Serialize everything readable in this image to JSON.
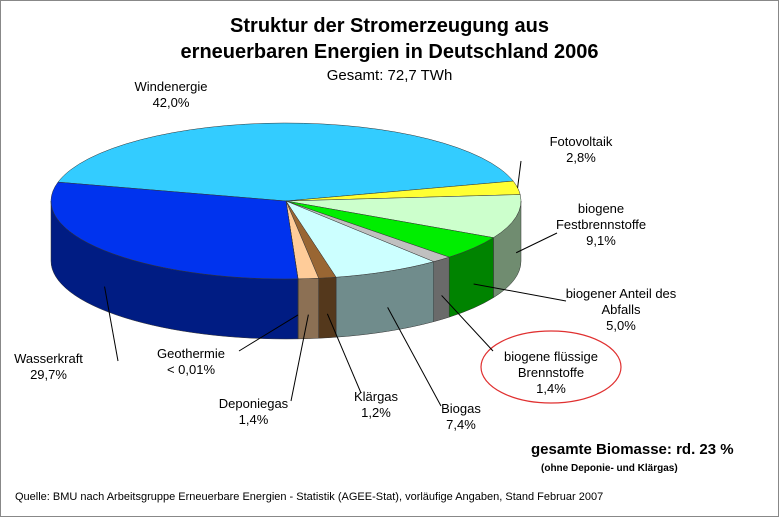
{
  "chart_data": {
    "type": "pie3d",
    "title": "Struktur der Stromerzeugung aus\nerneuerbaren Energien in Deutschland 2006",
    "subtitle": "Gesamt: 72,7 TWh",
    "categories": [
      "Windenergie",
      "Fotovoltaik",
      "biogene Festbrennstoffe",
      "biogener Anteil des Abfalls",
      "biogene flüssige Brennstoffe",
      "Biogas",
      "Klärgas",
      "Deponiegas",
      "Geothermie",
      "Wasserkraft"
    ],
    "values": [
      42.0,
      2.8,
      9.1,
      5.0,
      1.4,
      7.4,
      1.2,
      1.4,
      0.01,
      29.7
    ],
    "value_labels": [
      "42,0%",
      "2,8%",
      "9,1%",
      "5,0%",
      "1,4%",
      "7,4%",
      "1,2%",
      "1,4%",
      "< 0,01%",
      "29,7%"
    ],
    "colors": [
      "#33ccff",
      "#ffff33",
      "#ccffcc",
      "#00ee00",
      "#c0c0c0",
      "#ccffff",
      "#996633",
      "#ffcc99",
      "#000066",
      "#0033ee"
    ],
    "annotations": [
      "gesamte Biomasse: rd. 23 %",
      "(ohne Deponie- und Klärgas)"
    ],
    "source": "Quelle: BMU nach Arbeitsgruppe Erneuerbare Energien - Statistik (AGEE-Stat), vorläufige Angaben, Stand Februar 2007"
  }
}
